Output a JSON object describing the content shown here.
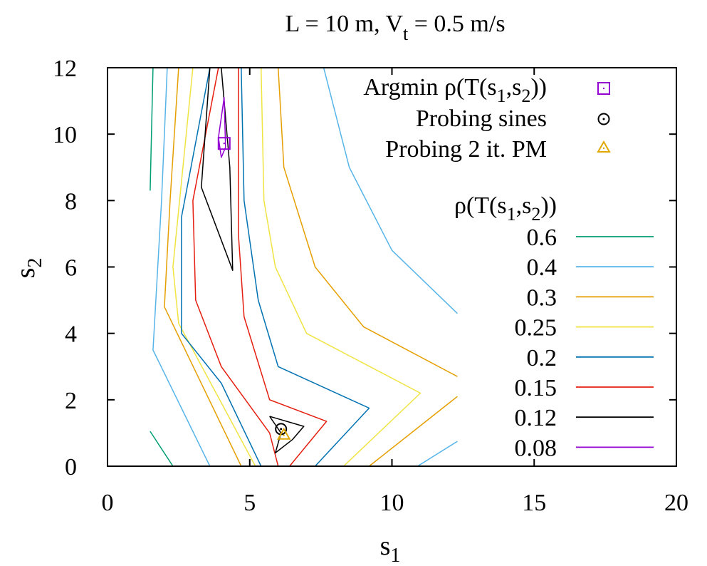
{
  "chart_data": {
    "type": "contour",
    "title": {
      "lhs": "L = 10 m, V",
      "lhs_sub": "t",
      "rhs": " = 0.5 m/s"
    },
    "xlabel": {
      "base": "s",
      "sub": "1"
    },
    "ylabel": {
      "base": "s",
      "sub": "2"
    },
    "xlim": [
      0,
      20
    ],
    "ylim": [
      0,
      12
    ],
    "xticks": [
      0,
      5,
      10,
      15,
      20
    ],
    "yticks": [
      0,
      2,
      4,
      6,
      8,
      10,
      12
    ],
    "legend_title": {
      "prefix": "ρ(T(s",
      "sub1": "1",
      "mid": ",s",
      "sub2": "2",
      "suffix": "))"
    },
    "contours": [
      {
        "level": "0.6",
        "color": "#009e73",
        "paths": [
          [
            [
              1.5,
              8.3
            ],
            [
              1.6,
              12.0
            ]
          ],
          [
            [
              1.5,
              1.05
            ],
            [
              2.3,
              0.0
            ]
          ]
        ]
      },
      {
        "level": "0.4",
        "color": "#56b4e9",
        "paths": [
          [
            [
              2.1,
              12.0
            ],
            [
              1.9,
              8.0
            ],
            [
              1.6,
              3.5
            ],
            [
              3.6,
              0.0
            ]
          ],
          [
            [
              7.6,
              12.0
            ],
            [
              8.5,
              9.0
            ],
            [
              10.0,
              6.5
            ],
            [
              12.3,
              4.6
            ]
          ],
          [
            [
              10.9,
              0.0
            ],
            [
              12.3,
              0.75
            ]
          ]
        ]
      },
      {
        "level": "0.3",
        "color": "#e69f00",
        "paths": [
          [
            [
              2.5,
              12.0
            ],
            [
              2.2,
              8.0
            ],
            [
              2.0,
              4.8
            ],
            [
              4.7,
              0.0
            ]
          ],
          [
            [
              6.0,
              12.0
            ],
            [
              6.2,
              9.0
            ],
            [
              7.3,
              6.0
            ],
            [
              9.0,
              4.2
            ],
            [
              12.3,
              2.7
            ]
          ],
          [
            [
              9.2,
              0.0
            ],
            [
              12.3,
              2.1
            ]
          ]
        ]
      },
      {
        "level": "0.25",
        "color": "#f0e442",
        "paths": [
          [
            [
              3.0,
              12.0
            ],
            [
              2.3,
              6.0
            ],
            [
              2.5,
              4.3
            ],
            [
              5.2,
              0.0
            ]
          ],
          [
            [
              5.4,
              12.0
            ],
            [
              5.5,
              8.0
            ],
            [
              5.9,
              6.0
            ],
            [
              7.0,
              4.0
            ],
            [
              11.0,
              2.2
            ],
            [
              8.3,
              0.0
            ]
          ]
        ]
      },
      {
        "level": "0.2",
        "color": "#0072b2",
        "paths": [
          [
            [
              3.6,
              12.0
            ],
            [
              2.6,
              7.5
            ],
            [
              2.6,
              4.0
            ],
            [
              4.0,
              2.5
            ],
            [
              5.4,
              0.0
            ]
          ],
          [
            [
              4.7,
              12.0
            ],
            [
              4.8,
              8.0
            ],
            [
              5.3,
              5.0
            ],
            [
              6.0,
              3.0
            ],
            [
              9.2,
              1.75
            ],
            [
              7.3,
              0.0
            ]
          ]
        ]
      },
      {
        "level": "0.15",
        "color": "#e51e10",
        "paths": [
          [
            [
              3.9,
              12.0
            ],
            [
              3.0,
              8.0
            ],
            [
              3.1,
              5.0
            ],
            [
              4.0,
              3.0
            ],
            [
              5.7,
              1.0
            ],
            [
              6.0,
              0.0
            ],
            [
              6.4,
              0.0
            ],
            [
              7.7,
              1.35
            ],
            [
              5.7,
              2.0
            ],
            [
              4.8,
              4.5
            ],
            [
              4.6,
              7.0
            ],
            [
              4.6,
              12.0
            ]
          ]
        ]
      },
      {
        "level": "0.12",
        "color": "#000000",
        "paths": [
          [
            [
              3.6,
              12.0
            ],
            [
              3.3,
              8.4
            ],
            [
              4.4,
              5.9
            ],
            [
              4.3,
              9.0
            ],
            [
              4.0,
              12.0
            ]
          ],
          [
            [
              5.7,
              1.5
            ],
            [
              6.1,
              1.0
            ],
            [
              5.9,
              0.4
            ],
            [
              6.5,
              0.8
            ],
            [
              6.9,
              1.2
            ],
            [
              5.7,
              1.5
            ]
          ]
        ]
      },
      {
        "level": "0.08",
        "color": "#9400d3",
        "paths": [
          [
            [
              3.9,
              9.9
            ],
            [
              4.1,
              11.1
            ],
            [
              4.15,
              9.6
            ],
            [
              4.0,
              9.3
            ],
            [
              3.9,
              9.9
            ]
          ]
        ]
      }
    ],
    "markers": [
      {
        "label": "Argmin ρ(T(s",
        "sub1": "1",
        "mid": ",s",
        "sub2": "2",
        "suffix": "))",
        "symbol": "square",
        "color": "#9400d3",
        "x": 4.1,
        "y": 9.72
      },
      {
        "label": "Probing sines",
        "symbol": "circle",
        "color": "#000000",
        "x": 6.1,
        "y": 1.12
      },
      {
        "label": "Probing 2 it. PM",
        "symbol": "triangle",
        "color": "#e0a800",
        "x": 6.2,
        "y": 0.95
      }
    ]
  }
}
